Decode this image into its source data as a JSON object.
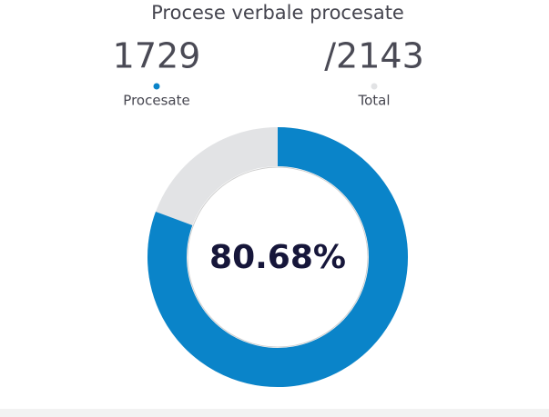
{
  "chart_data": {
    "type": "donut",
    "title": "Procese verbale procesate",
    "categories": [
      "Procesate",
      "Total"
    ],
    "values": [
      1729,
      2143
    ],
    "value_labels": [
      "1729",
      "/2143"
    ],
    "colors": [
      "#0a84c9",
      "#e2e3e5"
    ],
    "percent": 80.68,
    "percent_label": "80.68%"
  }
}
